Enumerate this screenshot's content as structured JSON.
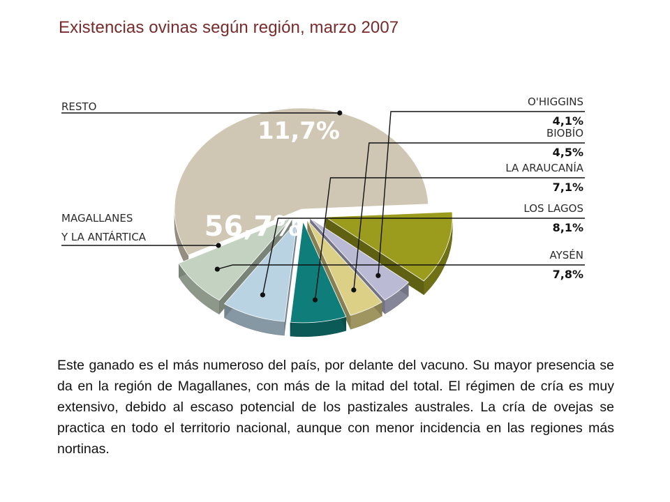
{
  "chart_data": {
    "type": "pie",
    "title": "Existencias ovinas según región, marzo 2007",
    "slices": [
      {
        "label": "MAGALLANES Y LA ANTÁRTICA",
        "label_lines": [
          "MAGALLANES",
          "Y LA ANTÁRTICA"
        ],
        "value": 56.7,
        "value_label": "56,7%",
        "color": "#cfc7b3"
      },
      {
        "label": "RESTO",
        "label_lines": [
          "RESTO"
        ],
        "value": 11.7,
        "value_label": "11,7%",
        "color": "#9b9b1e"
      },
      {
        "label": "O'HIGGINS",
        "label_lines": [
          "O'HIGGINS"
        ],
        "value": 4.1,
        "value_label": "4,1%",
        "color": "#babad5"
      },
      {
        "label": "BIOBÍO",
        "label_lines": [
          "BIOBÍO"
        ],
        "value": 4.5,
        "value_label": "4,5%",
        "color": "#dccf86"
      },
      {
        "label": "LA ARAUCANÍA",
        "label_lines": [
          "LA ARAUCANÍA"
        ],
        "value": 7.1,
        "value_label": "7,1%",
        "color": "#0f7d79"
      },
      {
        "label": "LOS LAGOS",
        "label_lines": [
          "LOS LAGOS"
        ],
        "value": 8.1,
        "value_label": "8,1%",
        "color": "#bad3e3"
      },
      {
        "label": "AYSÉN",
        "label_lines": [
          "AYSÉN"
        ],
        "value": 7.8,
        "value_label": "7,8%",
        "color": "#c4d3c1"
      }
    ]
  },
  "description": "Este ganado es el más numeroso del país, por delante del vacuno. Su mayor presencia se da en la región de Magallanes, con más de la mitad del total. El régimen de cría es muy extensivo, debido al escaso potencial de los pastizales australes. La cría de ovejas se practica en todo el territorio nacional, aunque con menor incidencia en las regiones más nortinas."
}
